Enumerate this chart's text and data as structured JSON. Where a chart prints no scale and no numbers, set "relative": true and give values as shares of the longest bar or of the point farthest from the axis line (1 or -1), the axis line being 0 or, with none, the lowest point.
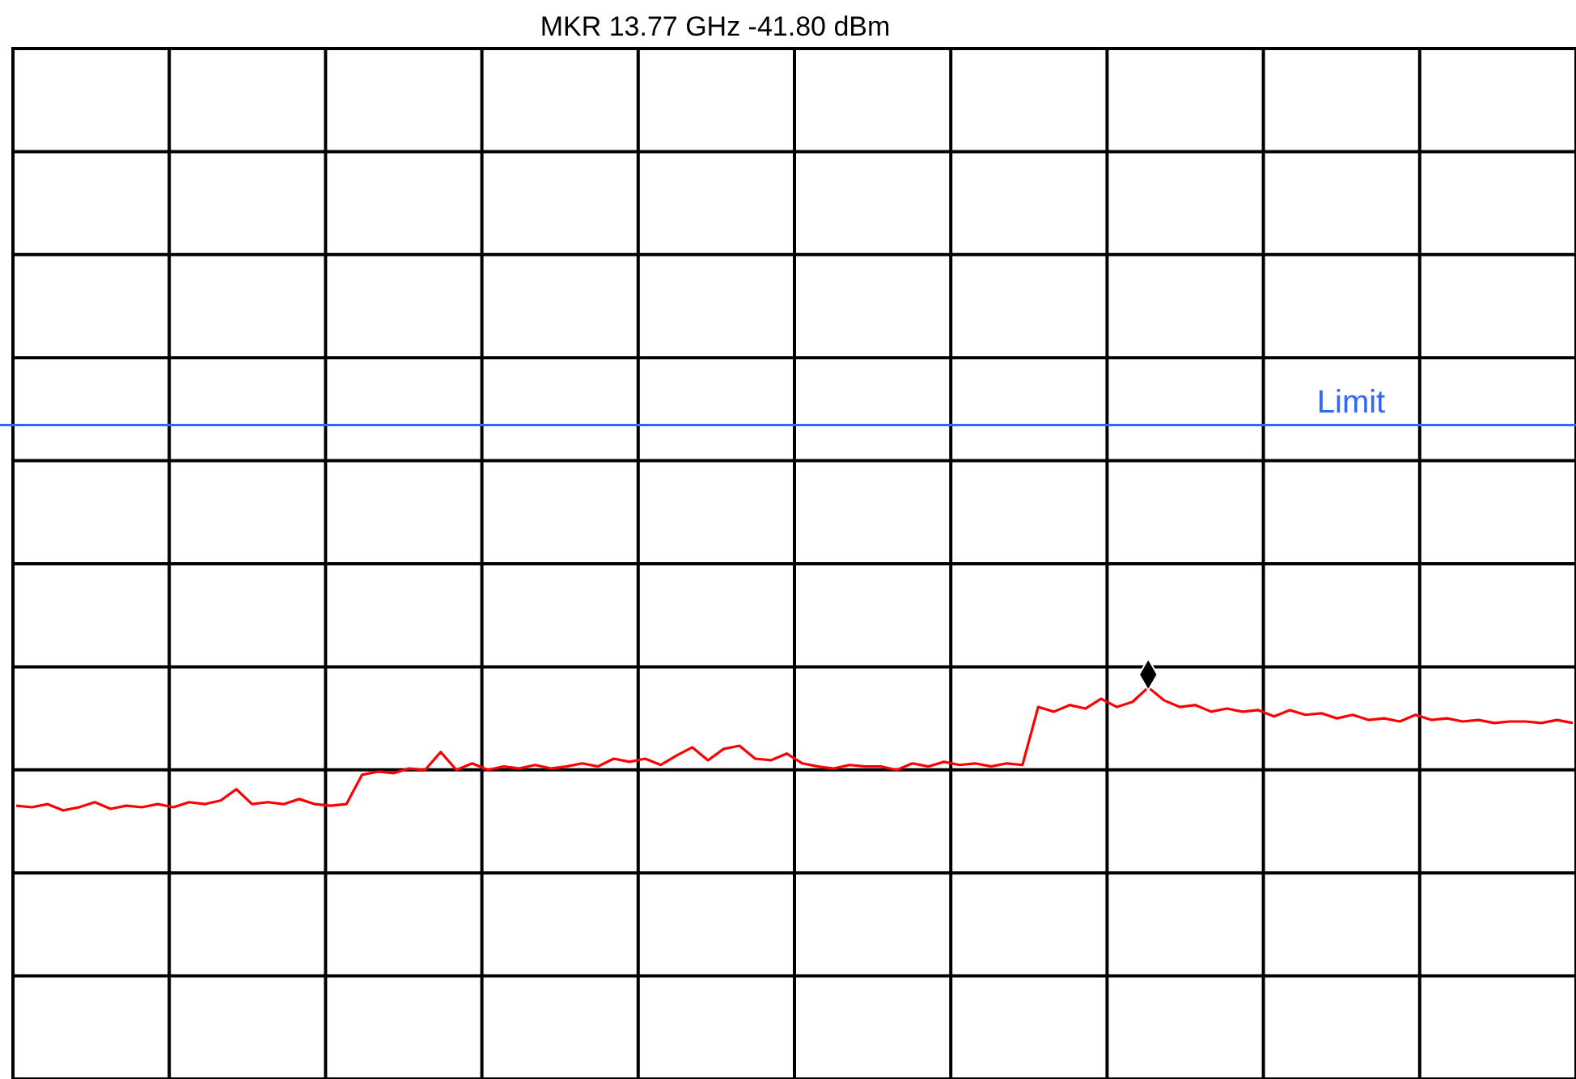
{
  "chart_data": {
    "type": "line",
    "title": "MKR 13.77 GHz  -41.80 dBm",
    "relative": true,
    "grid": true,
    "categories": [
      null,
      null,
      null,
      null,
      null,
      null,
      null,
      null,
      null,
      null,
      null,
      null,
      null,
      null,
      null,
      null,
      null,
      null,
      null,
      null,
      null,
      null,
      null,
      null,
      null,
      null,
      null,
      null,
      null,
      null,
      null,
      null,
      null,
      null,
      null,
      null,
      null,
      null,
      null,
      null,
      null,
      null,
      null,
      null,
      null,
      null,
      null,
      null,
      null,
      null,
      null,
      null,
      null,
      null,
      null,
      null,
      null,
      null,
      null,
      null,
      null,
      null,
      null,
      null,
      null,
      null,
      null,
      null,
      null,
      null,
      null,
      null,
      null,
      null,
      null,
      null,
      null,
      null,
      null,
      null,
      null,
      null,
      null,
      null,
      null,
      null,
      null,
      null,
      null,
      null,
      null,
      null,
      null,
      null,
      null,
      null,
      null,
      null,
      null,
      null
    ],
    "series": [
      {
        "color": "#ff0000",
        "line_style": "solid",
        "values": [
          0.698,
          0.694,
          0.702,
          0.686,
          0.694,
          0.707,
          0.69,
          0.698,
          0.694,
          0.702,
          0.694,
          0.707,
          0.702,
          0.711,
          0.74,
          0.702,
          0.707,
          0.702,
          0.715,
          0.702,
          0.698,
          0.702,
          0.777,
          0.785,
          0.781,
          0.793,
          0.789,
          0.835,
          0.789,
          0.806,
          0.789,
          0.798,
          0.793,
          0.802,
          0.793,
          0.798,
          0.806,
          0.798,
          0.818,
          0.81,
          0.818,
          0.802,
          0.826,
          0.847,
          0.814,
          0.843,
          0.851,
          0.818,
          0.814,
          0.831,
          0.806,
          0.798,
          0.793,
          0.802,
          0.798,
          0.798,
          0.789,
          0.806,
          0.798,
          0.81,
          0.802,
          0.806,
          0.798,
          0.806,
          0.802,
          0.95,
          0.938,
          0.955,
          0.946,
          0.971,
          0.95,
          0.963,
          1,
          0.967,
          0.95,
          0.955,
          0.938,
          0.946,
          0.938,
          0.942,
          0.926,
          0.942,
          0.93,
          0.934,
          0.921,
          0.93,
          0.917,
          0.921,
          0.913,
          0.93,
          0.917,
          0.921,
          0.913,
          0.917,
          0.909,
          0.913,
          0.913,
          0.909,
          0.917,
          0.909
        ]
      }
    ],
    "ref_lines": [
      {
        "axis": "y",
        "value": 1.67,
        "label": "Limit",
        "color": "#3366ff"
      }
    ]
  }
}
